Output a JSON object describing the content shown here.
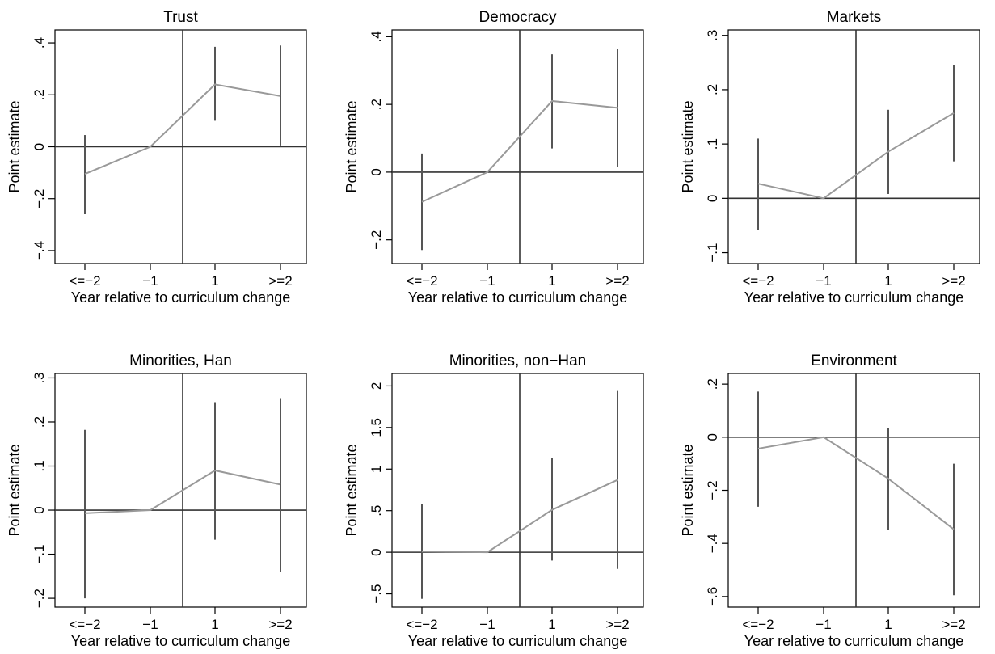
{
  "figure": {
    "xlabel": "Year relative to curriculum change",
    "ylabel": "Point estimate",
    "x_categories": [
      "<=−2",
      "−1",
      "1",
      ">=2"
    ],
    "colors": {
      "estimate_line": "#999999",
      "ci_bar": "#555555",
      "reference_line": "#333333",
      "frame": "#000000"
    }
  },
  "chart_data": [
    {
      "type": "line",
      "title": "Trust",
      "categories": [
        "<=−2",
        "−1",
        "1",
        ">=2"
      ],
      "ylim": [
        -0.45,
        0.45
      ],
      "yticks": [
        -0.4,
        -0.2,
        0,
        0.2,
        0.4
      ],
      "ytick_labels": [
        "−.4",
        "−.2",
        "0",
        ".2",
        ".4"
      ],
      "estimate": [
        -0.105,
        0.0,
        0.24,
        0.195
      ],
      "ci_low": [
        -0.26,
        null,
        0.1,
        0.005
      ],
      "ci_high": [
        0.045,
        null,
        0.385,
        0.39
      ],
      "reference_hline": 0,
      "event_vline_between": [
        "−1",
        "1"
      ]
    },
    {
      "type": "line",
      "title": "Democracy",
      "categories": [
        "<=−2",
        "−1",
        "1",
        ">=2"
      ],
      "ylim": [
        -0.27,
        0.42
      ],
      "yticks": [
        -0.2,
        0,
        0.2,
        0.4
      ],
      "ytick_labels": [
        "−.2",
        "0",
        ".2",
        ".4"
      ],
      "estimate": [
        -0.088,
        0.0,
        0.21,
        0.19
      ],
      "ci_low": [
        -0.23,
        null,
        0.07,
        0.015
      ],
      "ci_high": [
        0.055,
        null,
        0.348,
        0.365
      ],
      "reference_hline": 0,
      "event_vline_between": [
        "−1",
        "1"
      ]
    },
    {
      "type": "line",
      "title": "Markets",
      "categories": [
        "<=−2",
        "−1",
        "1",
        ">=2"
      ],
      "ylim": [
        -0.12,
        0.31
      ],
      "yticks": [
        -0.1,
        0,
        0.1,
        0.2,
        0.3
      ],
      "ytick_labels": [
        "−.1",
        "0",
        ".1",
        ".2",
        ".3"
      ],
      "estimate": [
        0.027,
        0.0,
        0.086,
        0.157
      ],
      "ci_low": [
        -0.058,
        null,
        0.008,
        0.068
      ],
      "ci_high": [
        0.11,
        null,
        0.163,
        0.245
      ],
      "reference_hline": 0,
      "event_vline_between": [
        "−1",
        "1"
      ]
    },
    {
      "type": "line",
      "title": "Minorities, Han",
      "categories": [
        "<=−2",
        "−1",
        "1",
        ">=2"
      ],
      "ylim": [
        -0.22,
        0.31
      ],
      "yticks": [
        -0.2,
        -0.1,
        0,
        0.1,
        0.2,
        0.3
      ],
      "ytick_labels": [
        "−.2",
        "−.1",
        "0",
        ".1",
        ".2",
        ".3"
      ],
      "estimate": [
        -0.007,
        0.0,
        0.09,
        0.058
      ],
      "ci_low": [
        -0.2,
        null,
        -0.067,
        -0.14
      ],
      "ci_high": [
        0.182,
        null,
        0.245,
        0.254
      ],
      "reference_hline": 0,
      "event_vline_between": [
        "−1",
        "1"
      ]
    },
    {
      "type": "line",
      "title": "Minorities, non−Han",
      "categories": [
        "<=−2",
        "−1",
        "1",
        ">=2"
      ],
      "ylim": [
        -0.66,
        2.15
      ],
      "yticks": [
        -0.5,
        0,
        0.5,
        1,
        1.5,
        2
      ],
      "ytick_labels": [
        "−.5",
        "0",
        ".5",
        "1",
        "1.5",
        "2"
      ],
      "estimate": [
        0.01,
        0.0,
        0.51,
        0.87
      ],
      "ci_low": [
        -0.56,
        null,
        -0.1,
        -0.2
      ],
      "ci_high": [
        0.58,
        null,
        1.13,
        1.94
      ],
      "reference_hline": 0,
      "event_vline_between": [
        "−1",
        "1"
      ]
    },
    {
      "type": "line",
      "title": "Environment",
      "categories": [
        "<=−2",
        "−1",
        "1",
        ">=2"
      ],
      "ylim": [
        -0.64,
        0.24
      ],
      "yticks": [
        -0.6,
        -0.4,
        -0.2,
        0,
        0.2
      ],
      "ytick_labels": [
        "−.6",
        "−.4",
        "−.2",
        "0",
        ".2"
      ],
      "estimate": [
        -0.043,
        0.0,
        -0.156,
        -0.347
      ],
      "ci_low": [
        -0.262,
        null,
        -0.35,
        -0.595
      ],
      "ci_high": [
        0.172,
        null,
        0.035,
        -0.1
      ],
      "reference_hline": 0,
      "event_vline_between": [
        "−1",
        "1"
      ]
    }
  ]
}
